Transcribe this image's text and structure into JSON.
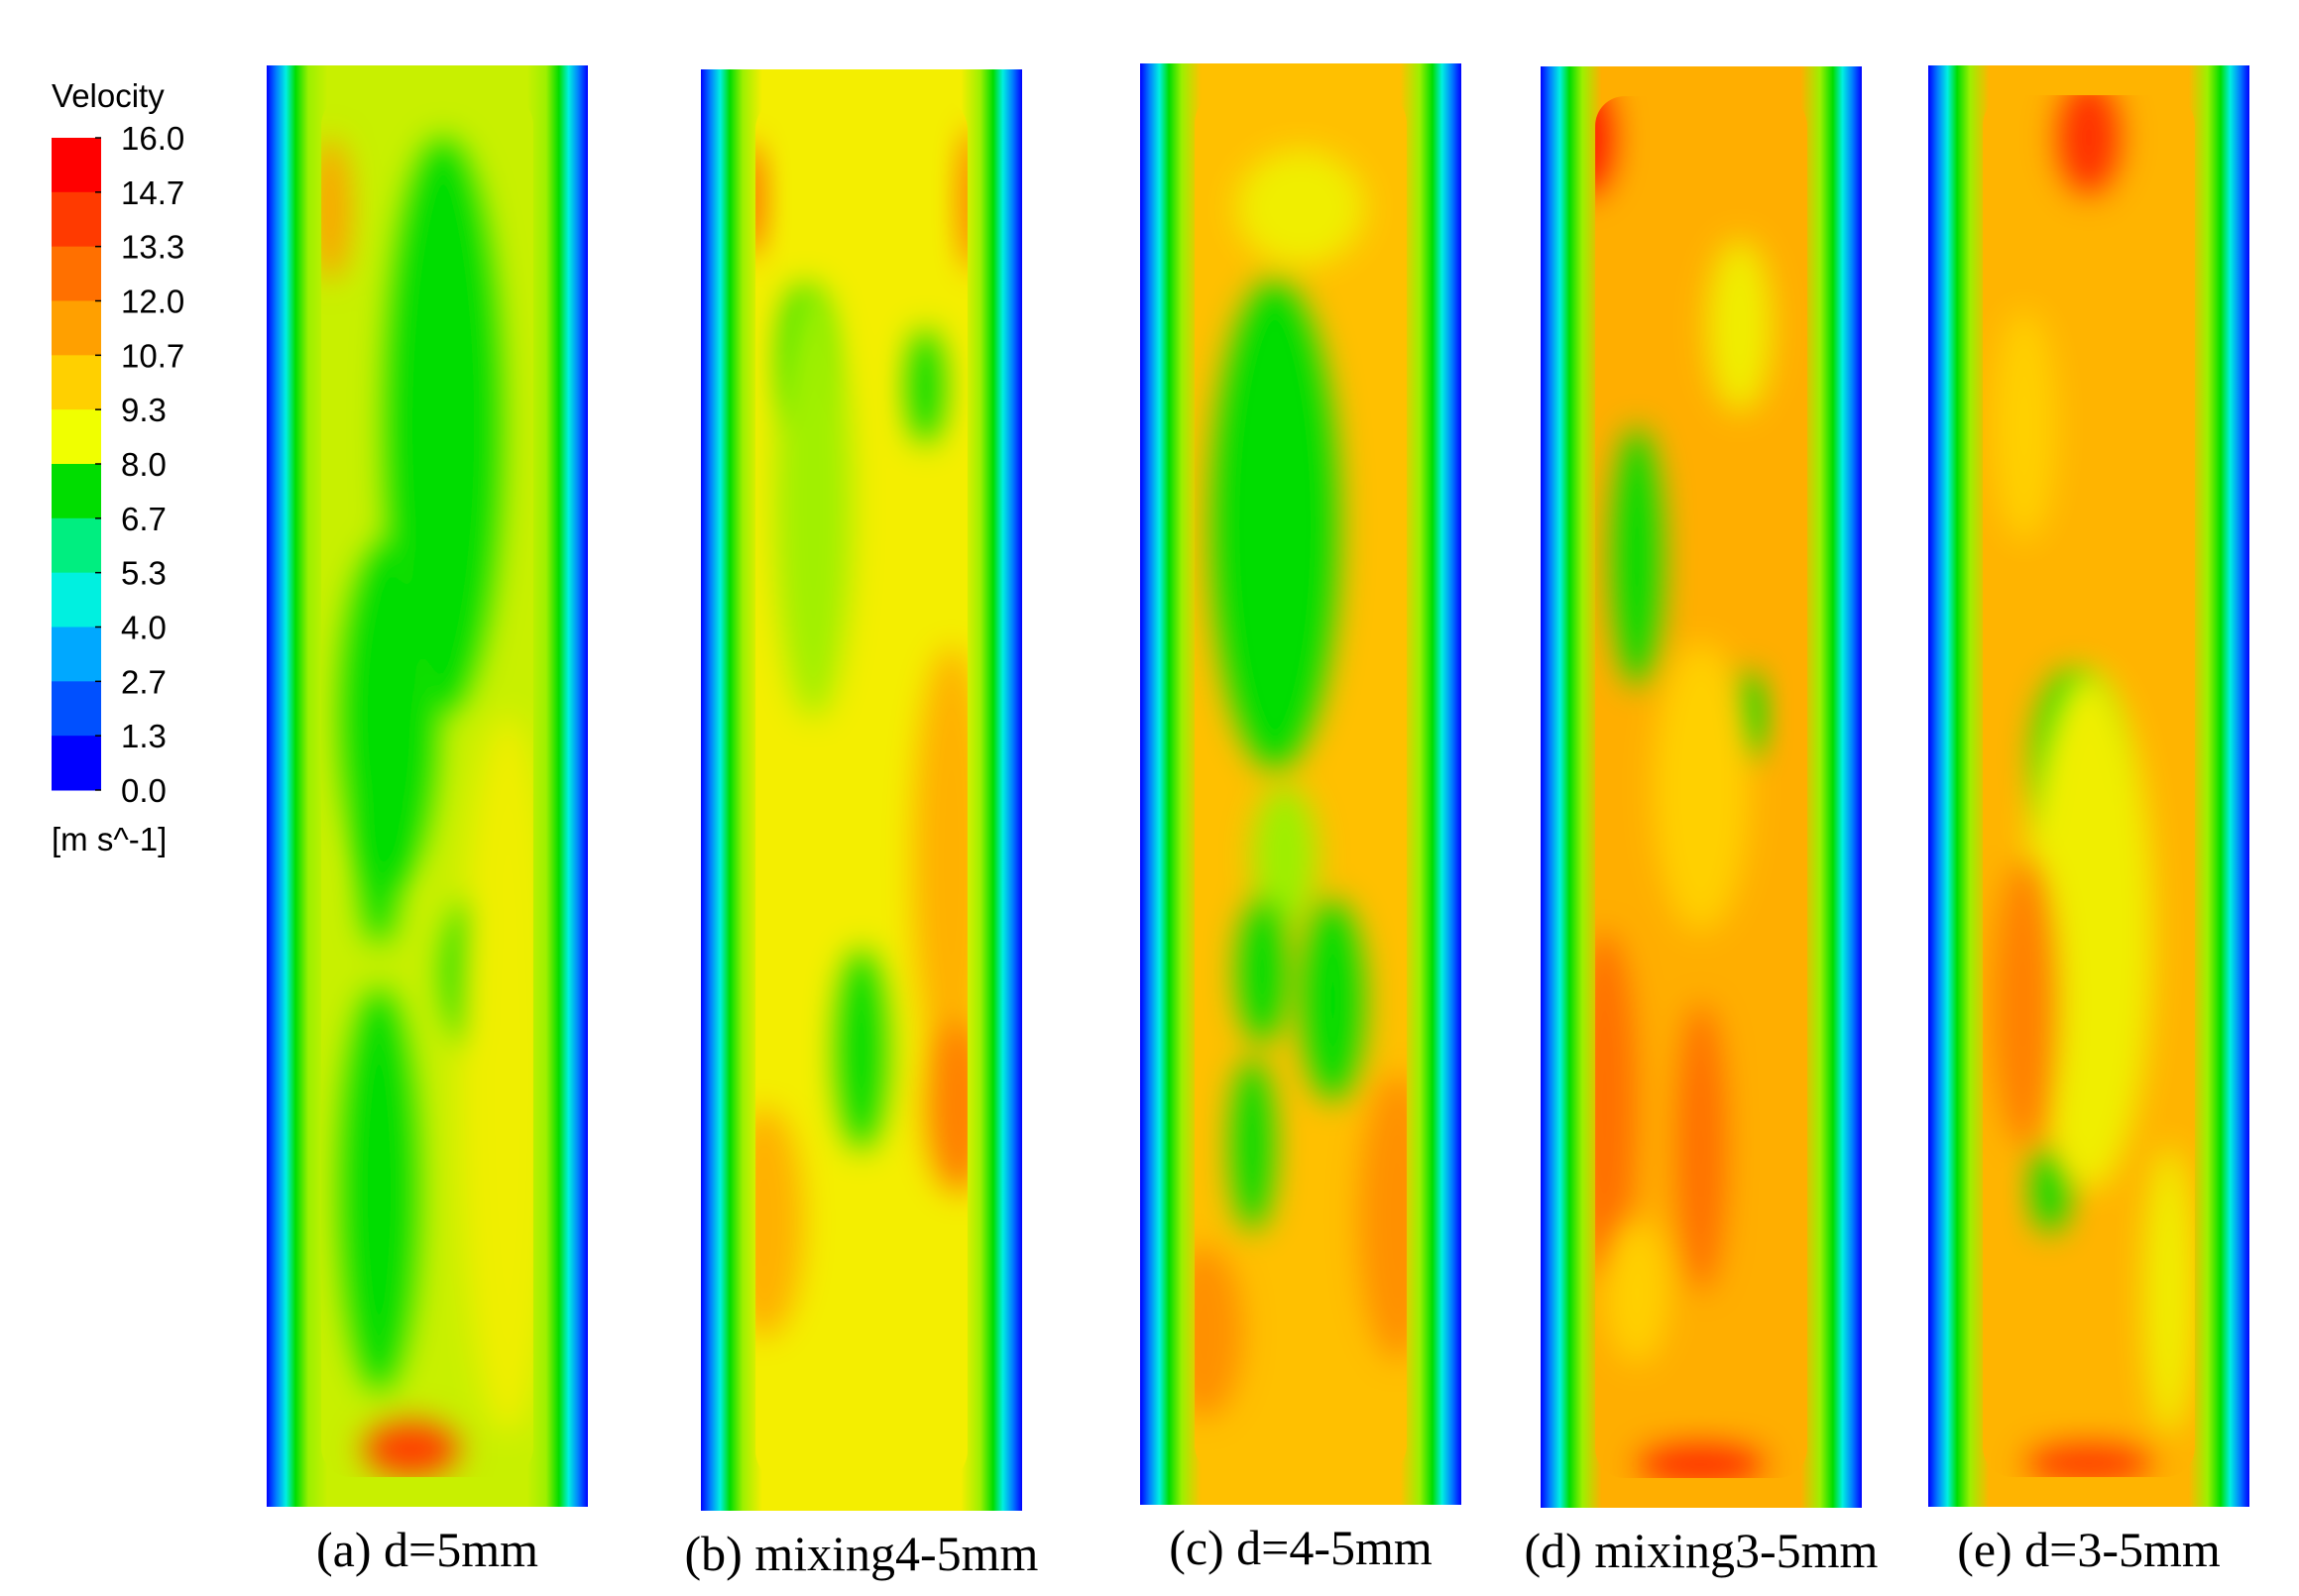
{
  "colorbar": {
    "title": "Velocity",
    "unit": "[m s^-1]",
    "ticks": [
      "16.0",
      "14.7",
      "13.3",
      "12.0",
      "10.7",
      "9.3",
      "8.0",
      "6.7",
      "5.3",
      "4.0",
      "2.7",
      "1.3",
      "0.0"
    ]
  },
  "panels": [
    {
      "caption": "(a) d=5mm"
    },
    {
      "caption": "(b) mixing4-5mm"
    },
    {
      "caption": "(c) d=4-5mm"
    },
    {
      "caption": "(d) mixing3-5mm"
    },
    {
      "caption": "(e) d=3-5mm"
    }
  ]
}
